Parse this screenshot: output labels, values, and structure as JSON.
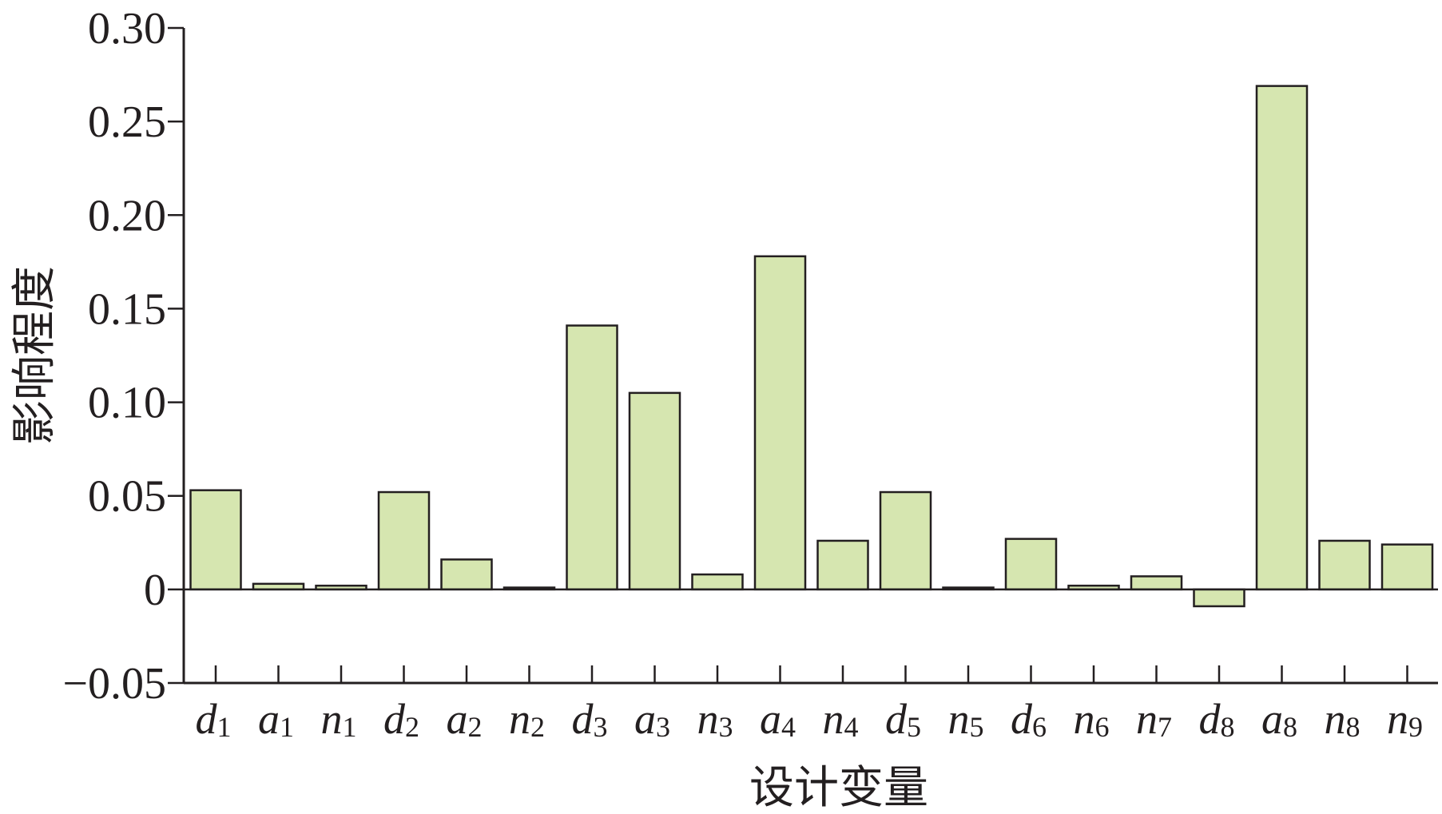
{
  "chart_data": {
    "type": "bar",
    "xlabel": "设计变量",
    "ylabel": "影响程度",
    "ylim": [
      -0.05,
      0.3
    ],
    "yticks": [
      -0.05,
      0,
      0.05,
      0.1,
      0.15,
      0.2,
      0.25,
      0.3
    ],
    "ytick_labels": [
      "−0.05",
      "0",
      "0.05",
      "0.10",
      "0.15",
      "0.20",
      "0.25",
      "0.30"
    ],
    "categories": [
      "d1",
      "a1",
      "n1",
      "d2",
      "a2",
      "n2",
      "d3",
      "a3",
      "n3",
      "a4",
      "n4",
      "d5",
      "n5",
      "d6",
      "n6",
      "n7",
      "d8",
      "a8",
      "n8",
      "n9"
    ],
    "category_labels": [
      {
        "base": "d",
        "sub": "1"
      },
      {
        "base": "a",
        "sub": "1"
      },
      {
        "base": "n",
        "sub": "1"
      },
      {
        "base": "d",
        "sub": "2"
      },
      {
        "base": "a",
        "sub": "2"
      },
      {
        "base": "n",
        "sub": "2"
      },
      {
        "base": "d",
        "sub": "3"
      },
      {
        "base": "a",
        "sub": "3"
      },
      {
        "base": "n",
        "sub": "3"
      },
      {
        "base": "a",
        "sub": "4"
      },
      {
        "base": "n",
        "sub": "4"
      },
      {
        "base": "d",
        "sub": "5"
      },
      {
        "base": "n",
        "sub": "5"
      },
      {
        "base": "d",
        "sub": "6"
      },
      {
        "base": "n",
        "sub": "6"
      },
      {
        "base": "n",
        "sub": "7"
      },
      {
        "base": "d",
        "sub": "8"
      },
      {
        "base": "a",
        "sub": "8"
      },
      {
        "base": "n",
        "sub": "8"
      },
      {
        "base": "n",
        "sub": "9"
      }
    ],
    "values": [
      0.053,
      0.003,
      0.002,
      0.052,
      0.016,
      0.001,
      0.141,
      0.105,
      0.008,
      0.178,
      0.026,
      0.052,
      0.001,
      0.027,
      0.002,
      0.007,
      -0.009,
      0.269,
      0.026,
      0.024
    ],
    "bar_color": "#d6e6b0",
    "grid": false,
    "legend": "none"
  }
}
